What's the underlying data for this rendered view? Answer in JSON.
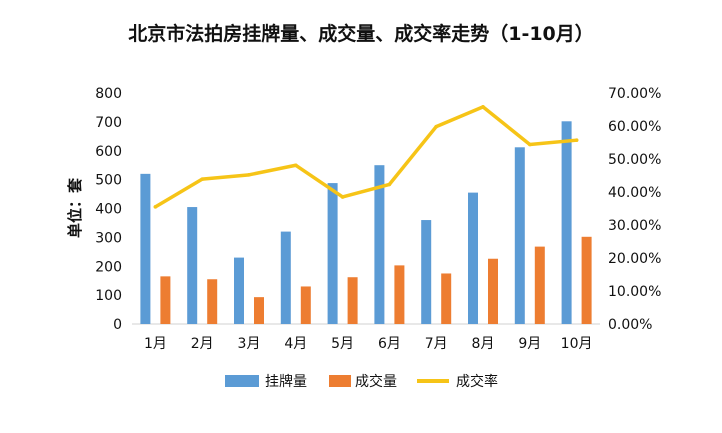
{
  "chart_data": {
    "type": "bar",
    "title": "北京市法拍房挂牌量、成交量、成交率走势（1-10月）",
    "ylabel": "单位：套",
    "categories": [
      "1月",
      "2月",
      "3月",
      "4月",
      "5月",
      "6月",
      "7月",
      "8月",
      "9月",
      "10月"
    ],
    "series": [
      {
        "name": "挂牌量",
        "kind": "bar",
        "axis": "left",
        "color": "#5B9BD5",
        "values": [
          520,
          405,
          230,
          320,
          488,
          550,
          360,
          455,
          612,
          702
        ]
      },
      {
        "name": "成交量",
        "kind": "bar",
        "axis": "left",
        "color": "#ED7D31",
        "values": [
          165,
          155,
          93,
          130,
          162,
          203,
          175,
          226,
          268,
          302
        ]
      },
      {
        "name": "成交率",
        "kind": "line",
        "axis": "right",
        "color": "#F6C417",
        "values": [
          35.5,
          43.9,
          45.2,
          48.1,
          38.5,
          42.3,
          59.8,
          65.8,
          54.4,
          55.7
        ]
      }
    ],
    "ylim": [
      0,
      800
    ],
    "yticks": [
      "0",
      "100",
      "200",
      "300",
      "400",
      "500",
      "600",
      "700",
      "800"
    ],
    "y2lim": [
      0,
      70
    ],
    "y2ticks": [
      "0.00%",
      "10.00%",
      "20.00%",
      "30.00%",
      "40.00%",
      "50.00%",
      "60.00%",
      "70.00%"
    ],
    "legend_position": "bottom",
    "grid": false
  }
}
